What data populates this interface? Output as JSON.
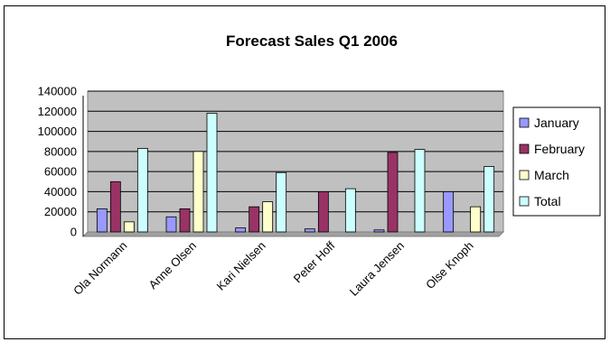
{
  "chart_data": {
    "type": "bar",
    "title": "Forecast Sales Q1 2006",
    "categories": [
      "Ola Normann",
      "Anne Olsen",
      "Kari Nielsen",
      "Peter Hoff",
      "Laura Jensen",
      "Olse Knoph"
    ],
    "series": [
      {
        "name": "January",
        "values": [
          23000,
          15000,
          4000,
          3000,
          2000,
          40000
        ],
        "color": "#9999FF"
      },
      {
        "name": "February",
        "values": [
          50000,
          23000,
          25000,
          40000,
          79000,
          0
        ],
        "color": "#993366"
      },
      {
        "name": "March",
        "values": [
          10000,
          80000,
          30000,
          0,
          0,
          25000
        ],
        "color": "#FFFFCC"
      },
      {
        "name": "Total",
        "values": [
          83000,
          118000,
          59000,
          43000,
          82000,
          65000
        ],
        "color": "#CCFFFF"
      }
    ],
    "ylim": [
      0,
      140000
    ],
    "yticks": [
      "140000",
      "120000",
      "100000",
      "80000",
      "60000",
      "40000",
      "20000",
      "0"
    ],
    "xlabel": "",
    "ylabel": "",
    "grid": true,
    "plot_background": "#C0C0C0",
    "legend_position": "right"
  }
}
